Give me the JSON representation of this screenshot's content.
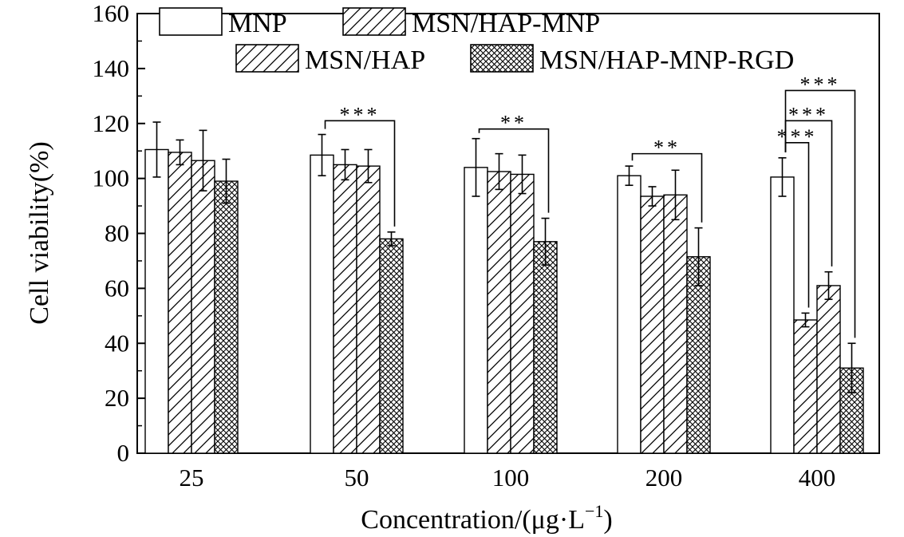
{
  "chart_data": {
    "type": "bar",
    "title": "",
    "xlabel_main": "Concentration/(μg·L",
    "xlabel_exp": "−1",
    "xlabel_close": ")",
    "ylabel": "Cell viability(%)",
    "ylim": [
      0,
      160
    ],
    "yticks": [
      0,
      20,
      40,
      60,
      80,
      100,
      120,
      140,
      160
    ],
    "ytick_labels": [
      "0",
      "20",
      "40",
      "60",
      "80",
      "100",
      "120",
      "140",
      "160"
    ],
    "categories": [
      "25",
      "50",
      "100",
      "200",
      "400"
    ],
    "series": [
      {
        "name": "MNP",
        "pattern": "none",
        "values": [
          110.5,
          108.5,
          104,
          101,
          100.5
        ],
        "errors": [
          10,
          7.5,
          10.5,
          3.5,
          7
        ]
      },
      {
        "name": "MSN/HAP-MNP",
        "pattern": "hatch",
        "values": [
          109.5,
          105,
          102.5,
          93.5,
          48.5
        ],
        "errors": [
          4.5,
          5.5,
          6.5,
          3.5,
          2.5
        ]
      },
      {
        "name": "MSN/HAP",
        "pattern": "hatch",
        "values": [
          106.5,
          104.5,
          101.5,
          94,
          61
        ],
        "errors": [
          11,
          6,
          7,
          9,
          5
        ]
      },
      {
        "name": "MSN/HAP-MNP-RGD",
        "pattern": "crosshatch",
        "values": [
          99,
          78,
          77,
          71.5,
          31
        ],
        "errors": [
          8,
          2.5,
          8.5,
          10.5,
          9
        ]
      }
    ],
    "legend_position": "top",
    "significance": [
      {
        "category": "50",
        "from_series": 0,
        "to_series": 3,
        "label": "***",
        "level": 121
      },
      {
        "category": "100",
        "from_series": 0,
        "to_series": 3,
        "label": "**",
        "level": 118
      },
      {
        "category": "200",
        "from_series": 0,
        "to_series": 3,
        "label": "**",
        "level": 109
      },
      {
        "category": "400",
        "from_series": 0,
        "to_series": 1,
        "label": "***",
        "level": 113
      },
      {
        "category": "400",
        "from_series": 0,
        "to_series": 2,
        "label": "***",
        "level": 121
      },
      {
        "category": "400",
        "from_series": 0,
        "to_series": 3,
        "label": "***",
        "level": 132
      }
    ]
  }
}
